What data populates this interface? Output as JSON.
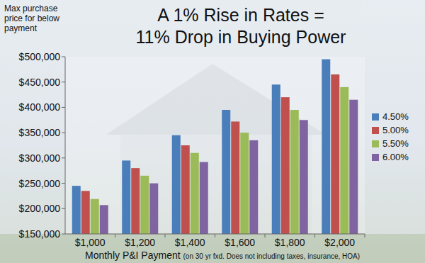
{
  "chart_data": {
    "type": "bar",
    "title": "A 1% Rise in Rates = 11% Drop in Buying Power",
    "y_label": "Max purchase price for below payment",
    "x_label": "Monthly P&I Payment",
    "annotations": [
      "(on 30 yr fxd. Does not including taxes, insurance, HOA)"
    ],
    "categories": [
      "$1,000",
      "$1,200",
      "$1,400",
      "$1,600",
      "$1,800",
      "$2,000"
    ],
    "series": [
      {
        "name": "4.50%",
        "color": "#4a7ebb",
        "values": [
          245000,
          295000,
          345000,
          395000,
          445000,
          495000
        ]
      },
      {
        "name": "5.00%",
        "color": "#c0504d",
        "values": [
          235000,
          280000,
          325000,
          372000,
          420000,
          465000
        ]
      },
      {
        "name": "5.50%",
        "color": "#9bbb59",
        "values": [
          219000,
          265000,
          310000,
          350000,
          395000,
          440000
        ]
      },
      {
        "name": "6.00%",
        "color": "#8064a2",
        "values": [
          207000,
          250000,
          292000,
          335000,
          375000,
          415000
        ]
      }
    ],
    "ylim": [
      150000,
      500000
    ],
    "yticks": [
      {
        "value": 150000,
        "label": "$150,000"
      },
      {
        "value": 200000,
        "label": "$200,000"
      },
      {
        "value": 250000,
        "label": "$250,000"
      },
      {
        "value": 300000,
        "label": "$300,000"
      },
      {
        "value": 350000,
        "label": "$350,000"
      },
      {
        "value": 400000,
        "label": "$400,000"
      },
      {
        "value": 450000,
        "label": "$450,000"
      },
      {
        "value": 500000,
        "label": "$500,000"
      }
    ],
    "grid": false,
    "legend": "right"
  }
}
